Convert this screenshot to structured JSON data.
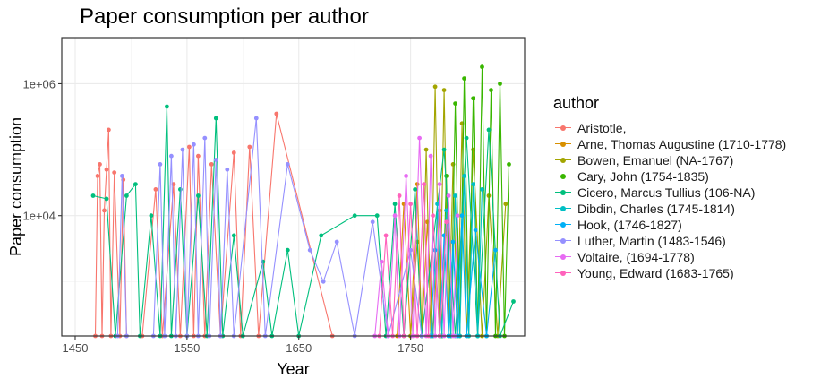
{
  "chart_data": {
    "type": "line",
    "title": "Paper consumption per author",
    "xlabel": "Year",
    "ylabel": "Paper consumption",
    "xlim": [
      1438,
      1852
    ],
    "x_ticks": [
      1450,
      1550,
      1650,
      1750
    ],
    "x_tick_labels": [
      "1450",
      "1550",
      "1650",
      "1750"
    ],
    "y_scale": "log",
    "ylim": [
      150,
      5000000
    ],
    "y_ticks": [
      10000,
      1000000
    ],
    "y_tick_labels": [
      "1e+04",
      "1e+06"
    ],
    "grid": true,
    "legend_title": "author",
    "legend_position": "right",
    "series": [
      {
        "name": "Aristotle,",
        "color": "#F8766D",
        "points": [
          [
            1468,
            150
          ],
          [
            1470,
            40000
          ],
          [
            1472,
            60000
          ],
          [
            1474,
            150
          ],
          [
            1476,
            12000
          ],
          [
            1478,
            50000
          ],
          [
            1480,
            200000
          ],
          [
            1482,
            150
          ],
          [
            1485,
            45000
          ],
          [
            1490,
            150
          ],
          [
            1493,
            35000
          ],
          [
            1496,
            150
          ],
          [
            1510,
            150
          ],
          [
            1522,
            25000
          ],
          [
            1528,
            150
          ],
          [
            1538,
            30000
          ],
          [
            1544,
            150
          ],
          [
            1552,
            110000
          ],
          [
            1556,
            150
          ],
          [
            1560,
            80000
          ],
          [
            1566,
            150
          ],
          [
            1572,
            60000
          ],
          [
            1580,
            150
          ],
          [
            1592,
            90000
          ],
          [
            1598,
            150
          ],
          [
            1606,
            110000
          ],
          [
            1614,
            150
          ],
          [
            1630,
            350000
          ],
          [
            1680,
            150
          ]
        ]
      },
      {
        "name": "Arne, Thomas Augustine (1710-1778)",
        "color": "#D89000",
        "points": [
          [
            1738,
            150
          ],
          [
            1744,
            15000
          ],
          [
            1750,
            150
          ],
          [
            1756,
            30000
          ],
          [
            1760,
            150
          ],
          [
            1765,
            8000
          ],
          [
            1770,
            150
          ],
          [
            1776,
            12000
          ],
          [
            1778,
            150
          ]
        ]
      },
      {
        "name": "Bowen, Emanuel (NA-1767)",
        "color": "#A3A500",
        "points": [
          [
            1750,
            150
          ],
          [
            1756,
            4000
          ],
          [
            1760,
            150
          ],
          [
            1764,
            100000
          ],
          [
            1768,
            150
          ],
          [
            1772,
            900000
          ],
          [
            1776,
            150
          ],
          [
            1780,
            800000
          ],
          [
            1784,
            150
          ],
          [
            1788,
            60000
          ],
          [
            1792,
            150
          ],
          [
            1796,
            250000
          ],
          [
            1800,
            150
          ],
          [
            1806,
            100000
          ],
          [
            1814,
            150
          ],
          [
            1820,
            20000
          ],
          [
            1828,
            150
          ],
          [
            1835,
            15000
          ]
        ]
      },
      {
        "name": "Cary, John (1754-1835)",
        "color": "#39B600",
        "points": [
          [
            1778,
            150
          ],
          [
            1782,
            40000
          ],
          [
            1786,
            150
          ],
          [
            1790,
            500000
          ],
          [
            1794,
            150
          ],
          [
            1798,
            1200000
          ],
          [
            1802,
            150
          ],
          [
            1806,
            600000
          ],
          [
            1810,
            150
          ],
          [
            1814,
            1800000
          ],
          [
            1818,
            150
          ],
          [
            1822,
            800000
          ],
          [
            1826,
            150
          ],
          [
            1830,
            1000000
          ],
          [
            1834,
            150
          ],
          [
            1838,
            60000
          ]
        ]
      },
      {
        "name": "Cicero, Marcus Tullius (106-NA)",
        "color": "#00BF7D",
        "points": [
          [
            1466,
            20000
          ],
          [
            1478,
            18000
          ],
          [
            1486,
            150
          ],
          [
            1496,
            20000
          ],
          [
            1504,
            30000
          ],
          [
            1508,
            150
          ],
          [
            1518,
            10000
          ],
          [
            1526,
            150
          ],
          [
            1532,
            450000
          ],
          [
            1536,
            150
          ],
          [
            1544,
            25000
          ],
          [
            1550,
            150
          ],
          [
            1560,
            20000
          ],
          [
            1568,
            150
          ],
          [
            1576,
            300000
          ],
          [
            1582,
            150
          ],
          [
            1592,
            5000
          ],
          [
            1600,
            150
          ],
          [
            1618,
            2000
          ],
          [
            1626,
            150
          ],
          [
            1640,
            3000
          ],
          [
            1650,
            150
          ],
          [
            1670,
            5000
          ],
          [
            1700,
            10000
          ],
          [
            1720,
            10000
          ],
          [
            1728,
            150
          ],
          [
            1736,
            15000
          ],
          [
            1744,
            150
          ],
          [
            1754,
            25000
          ],
          [
            1760,
            150
          ],
          [
            1780,
            100000
          ],
          [
            1790,
            150
          ],
          [
            1800,
            150000
          ],
          [
            1810,
            150
          ],
          [
            1820,
            200000
          ],
          [
            1830,
            150
          ],
          [
            1842,
            500
          ]
        ]
      },
      {
        "name": "Dibdin, Charles (1745-1814)",
        "color": "#00BFC4",
        "points": [
          [
            1770,
            150
          ],
          [
            1774,
            15000
          ],
          [
            1778,
            150
          ],
          [
            1782,
            12000
          ],
          [
            1786,
            150
          ],
          [
            1790,
            20000
          ],
          [
            1794,
            150
          ],
          [
            1798,
            40000
          ],
          [
            1802,
            150
          ],
          [
            1806,
            30000
          ],
          [
            1810,
            150
          ],
          [
            1814,
            25000
          ]
        ]
      },
      {
        "name": "Hook,  (1746-1827)",
        "color": "#00B0F6",
        "points": [
          [
            1768,
            150
          ],
          [
            1772,
            3000
          ],
          [
            1776,
            150
          ],
          [
            1780,
            5000
          ],
          [
            1784,
            150
          ],
          [
            1788,
            4000
          ],
          [
            1792,
            150
          ],
          [
            1796,
            10000
          ],
          [
            1800,
            150
          ],
          [
            1808,
            6000
          ],
          [
            1818,
            150
          ],
          [
            1826,
            3000
          ]
        ]
      },
      {
        "name": "Luther, Martin (1483-1546)",
        "color": "#9590FF",
        "points": [
          [
            1488,
            150
          ],
          [
            1492,
            40000
          ],
          [
            1496,
            150
          ],
          [
            1520,
            150
          ],
          [
            1526,
            60000
          ],
          [
            1530,
            150
          ],
          [
            1536,
            80000
          ],
          [
            1540,
            150
          ],
          [
            1546,
            100000
          ],
          [
            1550,
            150
          ],
          [
            1556,
            120000
          ],
          [
            1560,
            150
          ],
          [
            1566,
            150000
          ],
          [
            1570,
            150
          ],
          [
            1576,
            70000
          ],
          [
            1580,
            150
          ],
          [
            1586,
            50000
          ],
          [
            1592,
            150
          ],
          [
            1612,
            300000
          ],
          [
            1620,
            150
          ],
          [
            1640,
            60000
          ],
          [
            1660,
            3000
          ],
          [
            1672,
            1000
          ],
          [
            1684,
            4000
          ],
          [
            1700,
            150
          ],
          [
            1716,
            8000
          ],
          [
            1730,
            150
          ],
          [
            1750,
            3000
          ],
          [
            1760,
            150
          ],
          [
            1790,
            150
          ]
        ]
      },
      {
        "name": "Voltaire,  (1694-1778)",
        "color": "#E76BF3",
        "points": [
          [
            1718,
            150
          ],
          [
            1724,
            2000
          ],
          [
            1730,
            150
          ],
          [
            1736,
            10000
          ],
          [
            1740,
            150
          ],
          [
            1746,
            40000
          ],
          [
            1752,
            150
          ],
          [
            1758,
            150000
          ],
          [
            1764,
            150
          ],
          [
            1768,
            80000
          ],
          [
            1772,
            150
          ],
          [
            1776,
            30000
          ],
          [
            1780,
            150
          ],
          [
            1784,
            20000
          ],
          [
            1788,
            150
          ],
          [
            1792,
            10000
          ]
        ]
      },
      {
        "name": "Young, Edward (1683-1765)",
        "color": "#FF62BC",
        "points": [
          [
            1722,
            150
          ],
          [
            1728,
            5000
          ],
          [
            1734,
            150
          ],
          [
            1740,
            20000
          ],
          [
            1744,
            150
          ],
          [
            1750,
            15000
          ],
          [
            1756,
            150
          ],
          [
            1762,
            30000
          ],
          [
            1766,
            150
          ],
          [
            1770,
            10000
          ],
          [
            1776,
            150
          ],
          [
            1782,
            8000
          ]
        ]
      }
    ]
  }
}
